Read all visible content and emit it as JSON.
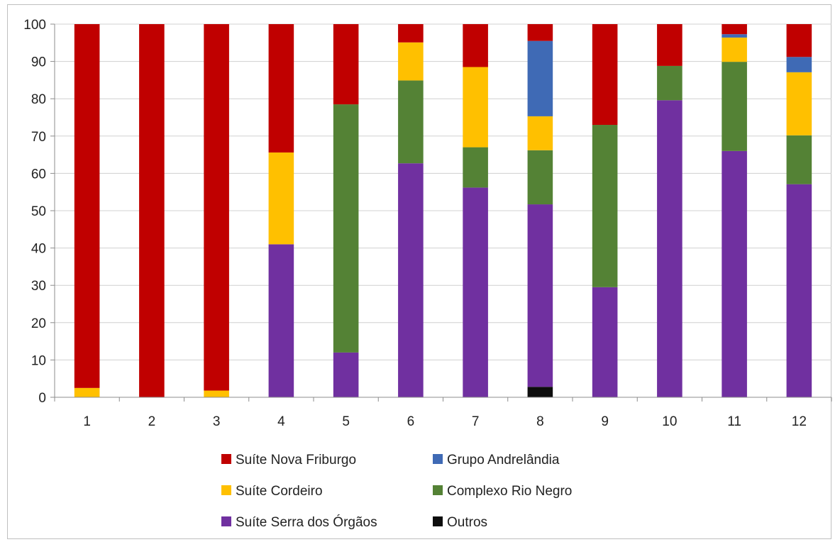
{
  "chart_data": {
    "type": "bar",
    "stacked": true,
    "categories": [
      "1",
      "2",
      "3",
      "4",
      "5",
      "6",
      "7",
      "8",
      "9",
      "10",
      "11",
      "12"
    ],
    "y_ticks": [
      "0",
      "10",
      "20",
      "30",
      "40",
      "50",
      "60",
      "70",
      "80",
      "90",
      "100"
    ],
    "ylim": [
      0,
      100
    ],
    "grid": true,
    "legend_position": "bottom",
    "series": [
      {
        "name": "Outros",
        "color": "#0d0d0d",
        "values": [
          0,
          0,
          0,
          0,
          0,
          0,
          0,
          2.8,
          0,
          0,
          0,
          0
        ]
      },
      {
        "name": "Suíte Serra dos Órgãos",
        "color": "#7030a0",
        "values": [
          0,
          0,
          0,
          41,
          12,
          62.7,
          56.2,
          48.9,
          29.5,
          79.6,
          66,
          57.1
        ]
      },
      {
        "name": "Complexo Rio Negro",
        "color": "#548235",
        "values": [
          0,
          0,
          0,
          0,
          66.5,
          22.2,
          10.8,
          14.5,
          43.5,
          9.2,
          23.9,
          13.1
        ]
      },
      {
        "name": "Suíte Cordeiro",
        "color": "#ffc000",
        "values": [
          2.5,
          0,
          1.8,
          24.6,
          0,
          10.2,
          21.5,
          9.1,
          0,
          0,
          6.5,
          16.9
        ]
      },
      {
        "name": "Grupo Andrelândia",
        "color": "#3f6ab5",
        "values": [
          0,
          0,
          0,
          0,
          0,
          0,
          0,
          20.2,
          0,
          0,
          0.9,
          4.1
        ]
      },
      {
        "name": "Suíte Nova Friburgo",
        "color": "#c00000",
        "values": [
          97.5,
          100,
          98.2,
          34.4,
          21.5,
          4.9,
          11.5,
          4.5,
          27,
          11.2,
          2.7,
          8.8
        ]
      }
    ],
    "legend_order": [
      "Suíte Nova Friburgo",
      "Grupo Andrelândia",
      "Suíte Cordeiro",
      "Complexo Rio Negro",
      "Suíte Serra dos Órgãos",
      "Outros"
    ]
  }
}
